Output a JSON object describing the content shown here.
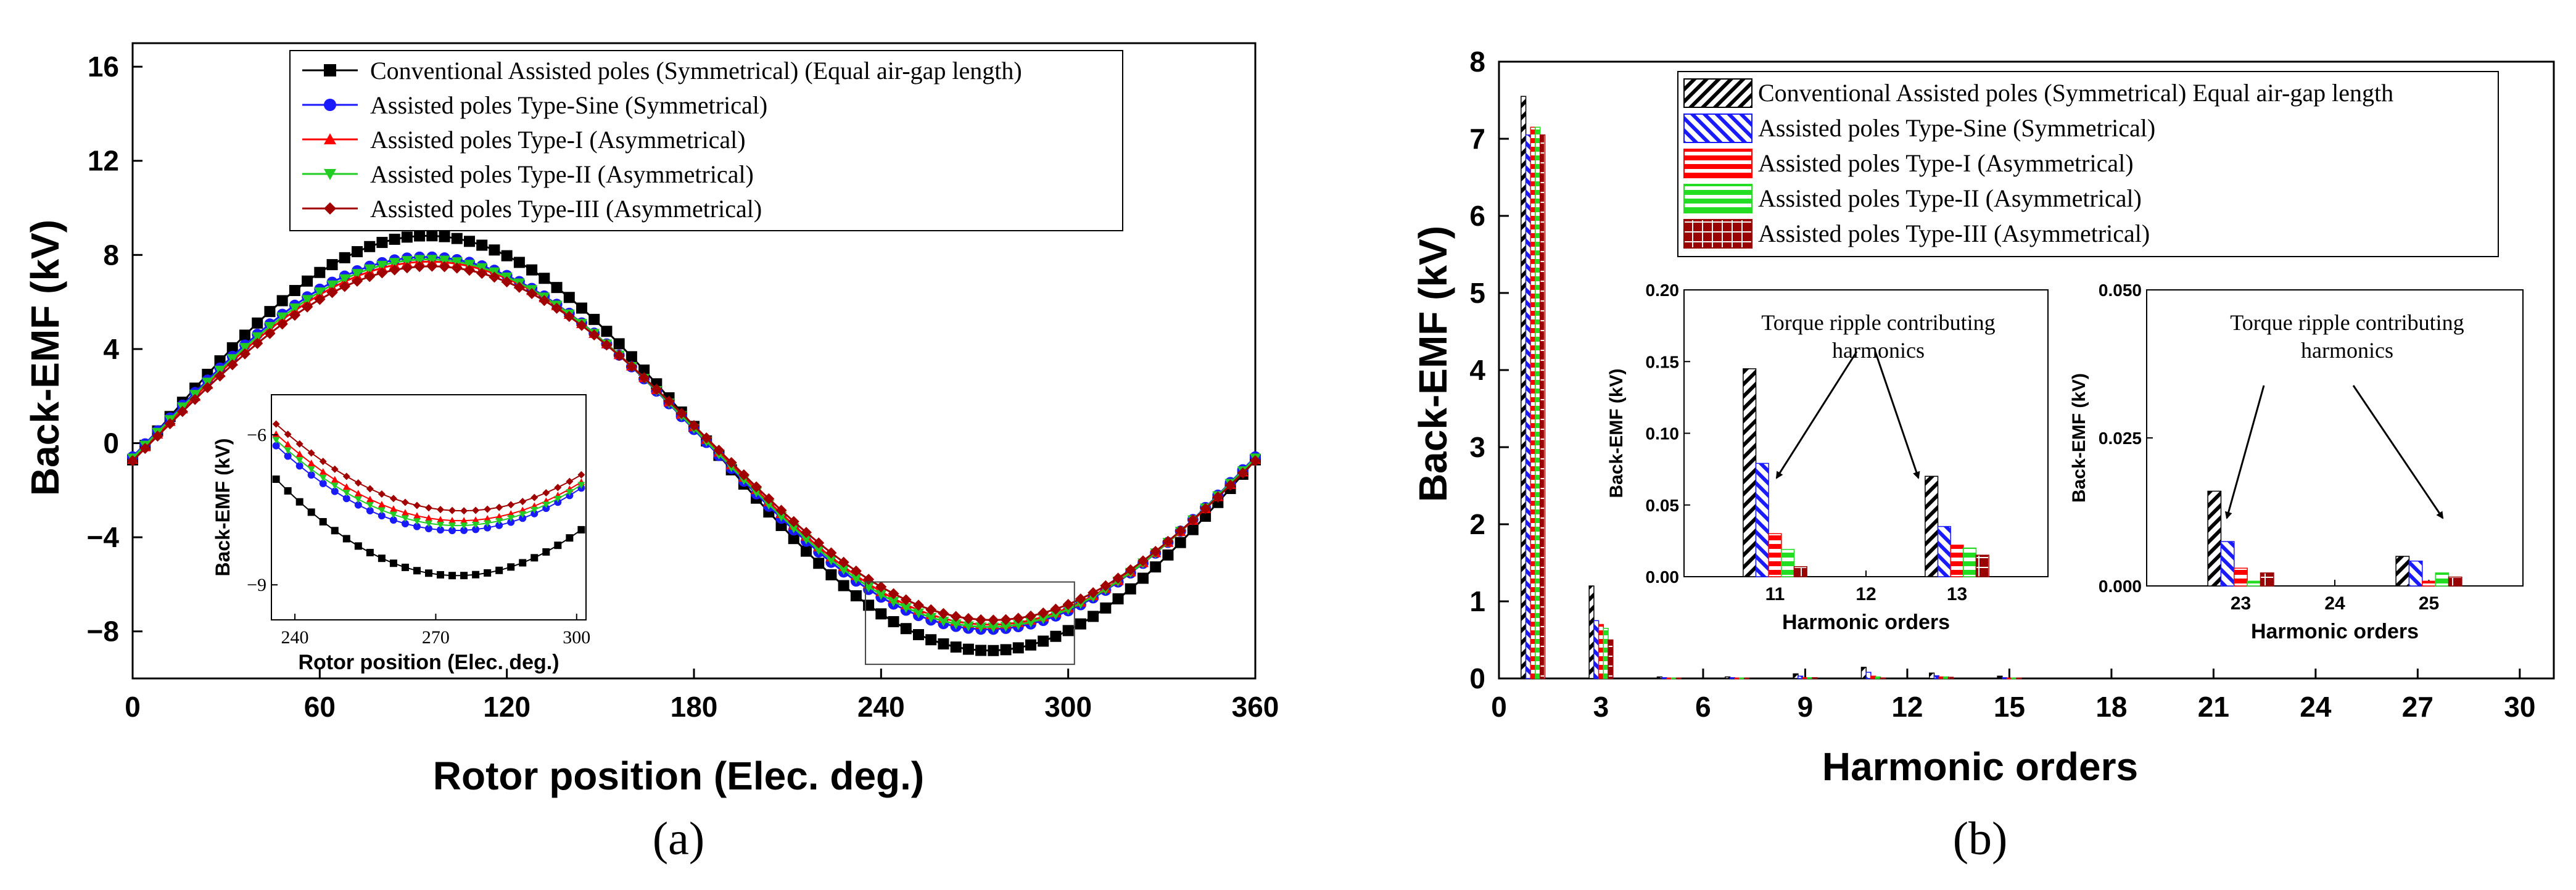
{
  "chart_data": [
    {
      "id": "a",
      "type": "line",
      "panel_label": "(a)",
      "xlabel": "Rotor position (Elec. deg.)",
      "ylabel": "Back-EMF (kV)",
      "xlim": [
        0,
        360
      ],
      "ylim": [
        -10,
        17
      ],
      "x_ticks": [
        "0",
        "60",
        "120",
        "180",
        "240",
        "300",
        "360"
      ],
      "y_ticks": [
        "−8",
        "−4",
        "0",
        "4",
        "8",
        "12",
        "16"
      ],
      "x_tick_values": [
        0,
        60,
        120,
        180,
        240,
        300,
        360
      ],
      "y_tick_values": [
        -8,
        -4,
        0,
        4,
        8,
        12,
        16
      ],
      "legend_position": "top-center",
      "grid": false,
      "series": [
        {
          "name": "Conventional Assisted poles (Symmetrical) (Equal air-gap length)",
          "color": "#000000",
          "marker": "square",
          "amplitude": 8.8
        },
        {
          "name": "Assisted poles Type-Sine (Symmetrical)",
          "color": "#1a1aff",
          "marker": "circle",
          "amplitude": 7.9
        },
        {
          "name": "Assisted poles Type-I (Asymmetrical)",
          "color": "#ff0000",
          "marker": "triangle-up",
          "amplitude": 7.7
        },
        {
          "name": "Assisted poles Type-II (Asymmetrical)",
          "color": "#22cc22",
          "marker": "triangle-down",
          "amplitude": 7.8
        },
        {
          "name": "Assisted poles Type-III (Asymmetrical)",
          "color": "#a00000",
          "marker": "diamond",
          "amplitude": 7.5
        }
      ],
      "inset": {
        "xlabel": "Rotor position (Elec. deg.)",
        "ylabel": "Back-EMF (kV)",
        "xlim": [
          235,
          302
        ],
        "ylim": [
          -9.7,
          -5.2
        ],
        "x_ticks": [
          "240",
          "270",
          "300"
        ],
        "x_tick_values": [
          240,
          270,
          300
        ],
        "y_ticks": [
          "−6",
          "−9"
        ],
        "y_tick_values": [
          -6,
          -9
        ]
      }
    },
    {
      "id": "b",
      "type": "bar",
      "panel_label": "(b)",
      "xlabel": "Harmonic orders",
      "ylabel": "Back-EMF (kV)",
      "xlim": [
        0,
        31
      ],
      "ylim": [
        0,
        8
      ],
      "x_ticks": [
        "0",
        "3",
        "6",
        "9",
        "12",
        "15",
        "18",
        "21",
        "24",
        "27",
        "30"
      ],
      "x_tick_values": [
        0,
        3,
        6,
        9,
        12,
        15,
        18,
        21,
        24,
        27,
        30
      ],
      "y_ticks": [
        "0",
        "1",
        "2",
        "3",
        "4",
        "5",
        "6",
        "7",
        "8"
      ],
      "y_tick_values": [
        0,
        1,
        2,
        3,
        4,
        5,
        6,
        7,
        8
      ],
      "legend_position": "top-right",
      "categories": [
        1,
        3,
        5,
        7,
        9,
        11,
        13,
        15
      ],
      "series": [
        {
          "name": "Conventional Assisted poles (Symmetrical) Equal air-gap length",
          "color": "#000000",
          "hatch": "diag-right",
          "values": [
            7.55,
            1.2,
            0.02,
            0.02,
            0.06,
            0.145,
            0.07,
            0.03
          ]
        },
        {
          "name": "Assisted poles Type-Sine (Symmetrical)",
          "color": "#1a1aff",
          "hatch": "diag-left",
          "values": [
            7.05,
            0.75,
            0.01,
            0.01,
            0.03,
            0.08,
            0.035,
            0.01
          ]
        },
        {
          "name": "Assisted poles Type-I (Asymmetrical)",
          "color": "#ff0000",
          "hatch": "horizontal",
          "values": [
            7.15,
            0.7,
            0.005,
            0.005,
            0.01,
            0.03,
            0.02,
            0.005
          ]
        },
        {
          "name": "Assisted poles Type-II (Asymmetrical)",
          "color": "#22dd22",
          "hatch": "horizontal",
          "values": [
            7.15,
            0.65,
            0.005,
            0.005,
            0.01,
            0.02,
            0.02,
            0.005
          ]
        },
        {
          "name": "Assisted poles Type-III (Asymmetrical)",
          "color": "#9a0000",
          "hatch": "grid",
          "values": [
            7.05,
            0.5,
            0.005,
            0.005,
            0.01,
            0.007,
            0.015,
            0.005
          ]
        }
      ],
      "insets": [
        {
          "annotation": [
            "Torque ripple contributing",
            "harmonics"
          ],
          "xlabel": "Harmonic orders",
          "ylabel": "Back-EMF (kV)",
          "ylim": [
            0,
            0.2
          ],
          "y_ticks": [
            "0.00",
            "0.05",
            "0.10",
            "0.15",
            "0.20"
          ],
          "y_tick_values": [
            0,
            0.05,
            0.1,
            0.15,
            0.2
          ],
          "x_ticks": [
            "11",
            "12",
            "13"
          ],
          "groups": [
            {
              "order": "11",
              "values": [
                0.145,
                0.079,
                0.03,
                0.019,
                0.007
              ]
            },
            {
              "order": "13",
              "values": [
                0.07,
                0.035,
                0.022,
                0.02,
                0.015
              ]
            }
          ]
        },
        {
          "annotation": [
            "Torque ripple contributing",
            "harmonics"
          ],
          "xlabel": "Harmonic orders",
          "ylabel": "Back-EMF (kV)",
          "ylim": [
            0,
            0.05
          ],
          "y_ticks": [
            "0.000",
            "0.025",
            "0.050"
          ],
          "y_tick_values": [
            0,
            0.025,
            0.05
          ],
          "x_ticks": [
            "23",
            "24",
            "25"
          ],
          "groups": [
            {
              "order": "23",
              "values": [
                0.016,
                0.0075,
                0.003,
                0.0008,
                0.0022
              ]
            },
            {
              "order": "25",
              "values": [
                0.005,
                0.0042,
                0.0008,
                0.0022,
                0.0015
              ]
            }
          ]
        }
      ]
    }
  ]
}
